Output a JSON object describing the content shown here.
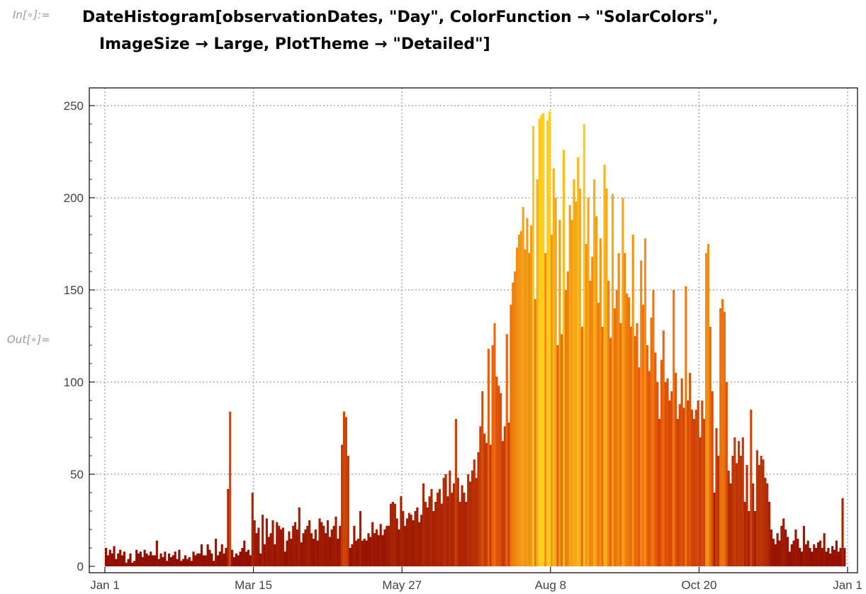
{
  "notebook": {
    "in_label": "In[∘]:=",
    "out_label": "Out[∘]=",
    "code_line1": "DateHistogram[observationDates, \"Day\", ColorFunction → \"SolarColors\",",
    "code_line2": "ImageSize → Large, PlotTheme → \"Detailed\"]"
  },
  "chart_data": {
    "type": "bar",
    "title": "",
    "xlabel": "",
    "ylabel": "",
    "x_unit": "day",
    "x_start": "Jan 1",
    "x_ticks": [
      "Jan 1",
      "Mar 15",
      "May 27",
      "Aug 8",
      "Oct 20",
      "Jan 1"
    ],
    "x_tick_day_index": [
      0,
      73,
      146,
      219,
      292,
      365
    ],
    "y_ticks": [
      0,
      50,
      100,
      150,
      200,
      250
    ],
    "ylim": [
      0,
      260
    ],
    "grid": true,
    "color_function": "SolarColors",
    "colors": {
      "low": "#8c0a00",
      "mid": "#e85a0a",
      "high": "#ffd21e",
      "axis": "#000000",
      "grid": "#aaaaaa"
    },
    "values": [
      10,
      6,
      9,
      7,
      11,
      4,
      7,
      9,
      6,
      8,
      2,
      4,
      7,
      2,
      3,
      9,
      7,
      8,
      5,
      9,
      7,
      6,
      8,
      6,
      6,
      14,
      4,
      7,
      5,
      8,
      3,
      7,
      5,
      6,
      8,
      4,
      9,
      3,
      4,
      6,
      4,
      5,
      3,
      8,
      6,
      7,
      7,
      12,
      6,
      6,
      12,
      9,
      7,
      3,
      15,
      6,
      8,
      12,
      7,
      10,
      42,
      84,
      9,
      5,
      7,
      6,
      8,
      10,
      14,
      8,
      9,
      6,
      40,
      25,
      18,
      21,
      7,
      28,
      12,
      26,
      16,
      18,
      25,
      12,
      24,
      22,
      20,
      21,
      8,
      14,
      19,
      15,
      22,
      24,
      20,
      32,
      13,
      18,
      20,
      22,
      25,
      18,
      15,
      20,
      14,
      26,
      24,
      22,
      18,
      25,
      16,
      20,
      22,
      27,
      15,
      22,
      66,
      84,
      81,
      60,
      10,
      12,
      22,
      14,
      15,
      30,
      14,
      15,
      14,
      18,
      16,
      24,
      18,
      20,
      17,
      23,
      17,
      20,
      22,
      22,
      34,
      35,
      34,
      26,
      20,
      38,
      30,
      22,
      26,
      29,
      28,
      25,
      30,
      32,
      24,
      28,
      45,
      35,
      32,
      38,
      42,
      30,
      35,
      40,
      42,
      34,
      48,
      50,
      38,
      52,
      40,
      45,
      80,
      48,
      35,
      44,
      40,
      35,
      50,
      46,
      52,
      58,
      48,
      62,
      76,
      95,
      72,
      67,
      118,
      66,
      120,
      132,
      103,
      98,
      94,
      68,
      76,
      126,
      78,
      142,
      154,
      160,
      173,
      180,
      182,
      195,
      172,
      189,
      170,
      185,
      239,
      145,
      210,
      243,
      245,
      246,
      170,
      242,
      247,
      180,
      216,
      200,
      120,
      188,
      126,
      226,
      150,
      160,
      196,
      188,
      210,
      198,
      222,
      205,
      130,
      240,
      175,
      200,
      155,
      168,
      210,
      190,
      143,
      178,
      130,
      218,
      205,
      155,
      124,
      202,
      140,
      150,
      170,
      132,
      200,
      170,
      148,
      146,
      130,
      180,
      125,
      132,
      108,
      166,
      142,
      178,
      120,
      106,
      135,
      150,
      116,
      100,
      80,
      112,
      128,
      100,
      102,
      90,
      95,
      150,
      105,
      80,
      88,
      102,
      86,
      152,
      90,
      105,
      85,
      80,
      85,
      90,
      70,
      90,
      80,
      170,
      175,
      130,
      95,
      40,
      75,
      60,
      140,
      145,
      138,
      100,
      52,
      45,
      60,
      70,
      56,
      68,
      60,
      70,
      35,
      55,
      30,
      85,
      45,
      30,
      63,
      55,
      60,
      58,
      48,
      45,
      35,
      20,
      15,
      12,
      18,
      14,
      22,
      26,
      20,
      16,
      8,
      12,
      14,
      20,
      15,
      10,
      8,
      22,
      12,
      14,
      10,
      8,
      12,
      10,
      13,
      14,
      10,
      18,
      8,
      10,
      7,
      11,
      9,
      14,
      8,
      10,
      37,
      10
    ]
  }
}
